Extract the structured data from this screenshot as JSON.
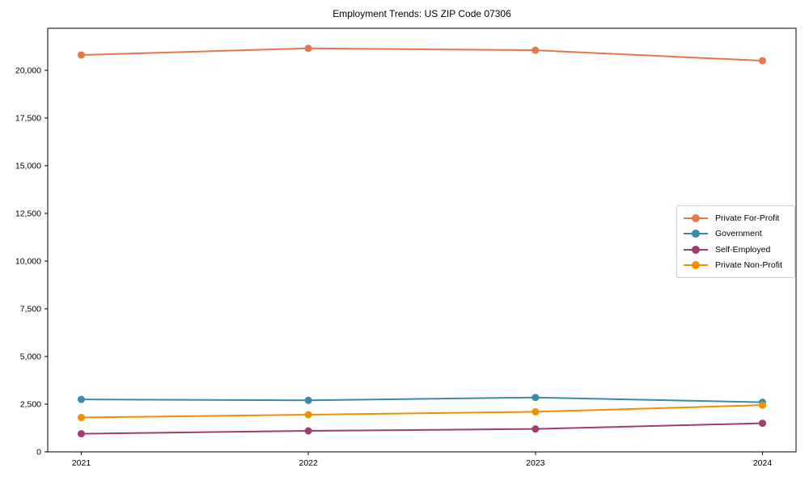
{
  "chart_data": {
    "type": "line",
    "title": "Employment Trends: US ZIP Code 07306",
    "xlabel": "",
    "ylabel": "",
    "categories": [
      "2021",
      "2022",
      "2023",
      "2024"
    ],
    "series": [
      {
        "name": "Private For-Profit",
        "color": "#E8764B",
        "values": [
          20800,
          21150,
          21050,
          20500
        ]
      },
      {
        "name": "Government",
        "color": "#3A8AAB",
        "values": [
          2750,
          2700,
          2850,
          2600
        ]
      },
      {
        "name": "Self-Employed",
        "color": "#A23B72",
        "values": [
          950,
          1100,
          1200,
          1500
        ]
      },
      {
        "name": "Private Non-Profit",
        "color": "#F18F01",
        "values": [
          1800,
          1950,
          2100,
          2450
        ]
      }
    ],
    "yticks": [
      {
        "value": 0,
        "label": "0"
      },
      {
        "value": 2500,
        "label": "2,500"
      },
      {
        "value": 5000,
        "label": "5,000"
      },
      {
        "value": 7500,
        "label": "7,500"
      },
      {
        "value": 10000,
        "label": "10,000"
      },
      {
        "value": 12500,
        "label": "12,500"
      },
      {
        "value": 15000,
        "label": "15,000"
      },
      {
        "value": 17500,
        "label": "17,500"
      },
      {
        "value": 20000,
        "label": "20,000"
      }
    ],
    "ylim": [
      0,
      22200
    ],
    "grid": false,
    "legend_position": "center-right",
    "marker": "circle",
    "axis_color": "#000000"
  }
}
